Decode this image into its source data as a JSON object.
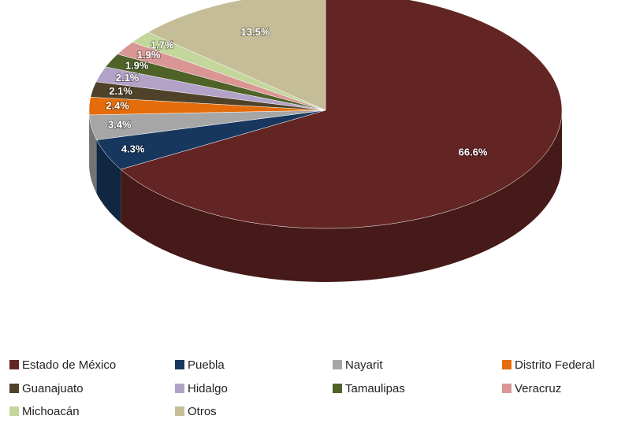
{
  "chart_data": {
    "type": "pie",
    "categories": [
      "Estado de México",
      "Puebla",
      "Nayarit",
      "Distrito Federal",
      "Guanajuato",
      "Hidalgo",
      "Tamaulipas",
      "Veracruz",
      "Michoacán",
      "Otros"
    ],
    "values": [
      66.6,
      4.3,
      3.4,
      2.4,
      2.1,
      2.1,
      1.9,
      1.9,
      1.7,
      13.5
    ],
    "value_labels": [
      "66.6%",
      "4.3%",
      "3.4%",
      "2.4%",
      "2.1%",
      "2.1%",
      "1.9%",
      "1.9%",
      "1.7%",
      "13.5%"
    ],
    "colors": [
      "#632523",
      "#17375e",
      "#a6a6a6",
      "#e46c0a",
      "#4f4228",
      "#b3a2c7",
      "#4f6228",
      "#d99694",
      "#c3d69b",
      "#c4bd97"
    ],
    "legend": "bottom"
  }
}
